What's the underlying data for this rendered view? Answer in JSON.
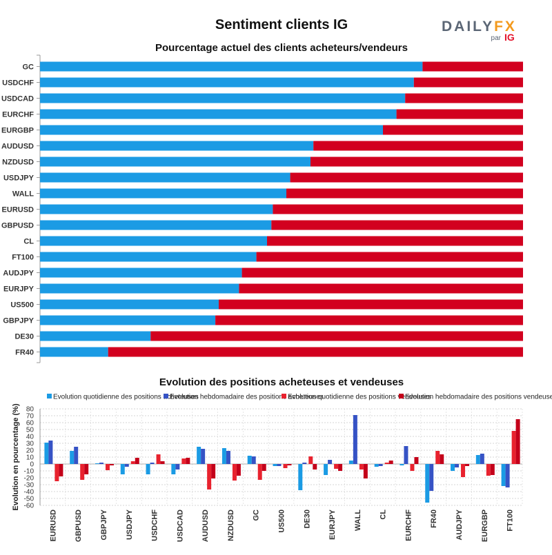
{
  "title": "Sentiment clients IG",
  "logo": {
    "brand_left": "DAILY",
    "brand_right": "FX",
    "sub_par": "par",
    "sub_ig": "IG"
  },
  "colors": {
    "buy": "#1b9be4",
    "sell": "#d2001f",
    "daily_buy": "#1b9be4",
    "weekly_buy": "#3653c5",
    "daily_sell": "#e8222e",
    "weekly_sell": "#c4001a",
    "logo_gray": "#5b6675",
    "logo_orange": "#f39a1e",
    "logo_red": "#e3122b"
  },
  "chart_data": [
    {
      "type": "bar",
      "orientation": "horizontal",
      "stacked": true,
      "title": "Pourcentage actuel des clients acheteurs/vendeurs",
      "categories": [
        "GC",
        "USDCHF",
        "USDCAD",
        "EURCHF",
        "EURGBP",
        "AUDUSD",
        "NZDUSD",
        "USDJPY",
        "WALL",
        "EURUSD",
        "GBPUSD",
        "CL",
        "FT100",
        "AUDJPY",
        "EURJPY",
        "US500",
        "GBPJPY",
        "DE30",
        "FR40"
      ],
      "series": [
        {
          "key": "buy",
          "values": [
            79.2,
            77.4,
            75.6,
            73.8,
            71.0,
            56.6,
            56.0,
            51.8,
            51.0,
            48.2,
            47.9,
            47.0,
            44.8,
            41.8,
            41.2,
            37.0,
            36.3,
            22.9,
            14.1
          ]
        },
        {
          "key": "sell",
          "values": [
            20.8,
            22.6,
            24.4,
            26.2,
            29.0,
            43.4,
            44.0,
            48.2,
            49.0,
            51.8,
            52.1,
            53.0,
            55.2,
            58.2,
            58.8,
            63.0,
            63.7,
            77.1,
            85.9
          ]
        }
      ],
      "xlim": [
        0,
        100
      ]
    },
    {
      "type": "bar",
      "title": "Evolution des positions acheteuses et vendeuses",
      "ylabel": "Evolution en pourcentage (%)",
      "ylim": [
        -60,
        80
      ],
      "yticks": [
        -60,
        -50,
        -40,
        -30,
        -20,
        -10,
        0,
        10,
        20,
        30,
        40,
        50,
        60,
        70,
        80
      ],
      "grid": true,
      "legend_position": "top",
      "categories": [
        "EURUSD",
        "GBPUSD",
        "GBPJPY",
        "USDJPY",
        "USDCHF",
        "USDCAD",
        "AUDUSD",
        "NZDUSD",
        "GC",
        "US500",
        "DE30",
        "EURJPY",
        "WALL",
        "CL",
        "EURCHF",
        "FR40",
        "AUDJPY",
        "EURGBP",
        "FT100"
      ],
      "series": [
        {
          "key": "daily_buy",
          "name": "Evolution quotidienne des positions acheteuses",
          "values": [
            31,
            19,
            1,
            -15,
            -15,
            -15,
            25,
            23,
            12,
            -3,
            -38,
            -16,
            5,
            -4,
            -2,
            -56,
            -10,
            13,
            -32
          ]
        },
        {
          "key": "weekly_buy",
          "name": "Evolution hebdomadaire des positions acheteuses",
          "values": [
            34,
            25,
            2,
            -4,
            2,
            -8,
            22,
            19,
            11,
            -3,
            2,
            6,
            71,
            -3,
            26,
            -39,
            -5,
            15,
            -34
          ]
        },
        {
          "key": "daily_sell",
          "name": "Evolution quotidienne des positions vendeuses",
          "values": [
            -25,
            -23,
            -9,
            4,
            14,
            8,
            -37,
            -24,
            -23,
            -6,
            11,
            -7,
            -8,
            2,
            -10,
            19,
            -19,
            -17,
            48
          ]
        },
        {
          "key": "weekly_sell",
          "name": "Evolution hebdomadaire des positions vendeuses",
          "values": [
            -18,
            -15,
            -2,
            9,
            4,
            9,
            -21,
            -17,
            -10,
            -2,
            -8,
            -10,
            -21,
            5,
            10,
            14,
            -3,
            -16,
            65
          ]
        }
      ]
    }
  ]
}
